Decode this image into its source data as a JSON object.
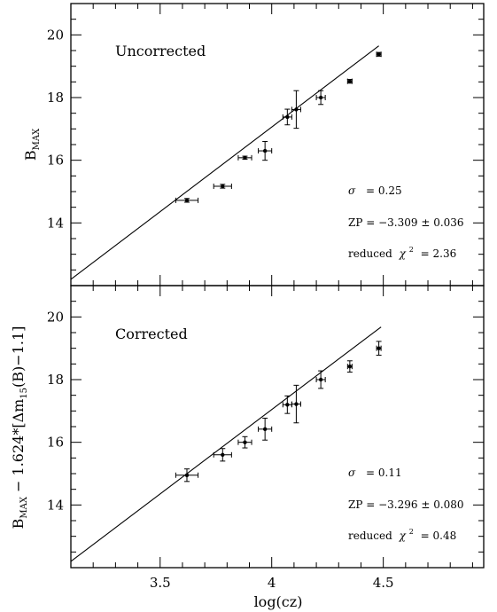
{
  "figure": {
    "xlabel": "log(cz)"
  },
  "chart_data": [
    {
      "type": "scatter",
      "title": "Uncorrected",
      "xlabel": "log(cz)",
      "ylabel_main": "B",
      "ylabel_sub": "MAX",
      "ylabel_rest": "",
      "xlim": [
        3.1,
        4.95
      ],
      "ylim": [
        12.0,
        21.0
      ],
      "xticks": [
        3.5,
        4,
        4.5
      ],
      "xtick_labels": [
        "3.5",
        "4",
        "4.5"
      ],
      "yticks": [
        14,
        16,
        18,
        20
      ],
      "ytick_labels": [
        "14",
        "16",
        "18",
        "20"
      ],
      "fit_line": {
        "x": [
          3.1,
          4.48
        ],
        "y": [
          12.2,
          19.65
        ]
      },
      "points": [
        {
          "x": 3.62,
          "y": 14.72,
          "xerr": 0.05,
          "yerr": 0.06
        },
        {
          "x": 3.78,
          "y": 15.17,
          "xerr": 0.04,
          "yerr": 0.06
        },
        {
          "x": 3.88,
          "y": 16.08,
          "xerr": 0.03,
          "yerr": 0.05
        },
        {
          "x": 3.97,
          "y": 16.3,
          "xerr": 0.03,
          "yerr": 0.3
        },
        {
          "x": 4.07,
          "y": 17.38,
          "xerr": 0.02,
          "yerr": 0.25
        },
        {
          "x": 4.11,
          "y": 17.62,
          "xerr": 0.02,
          "yerr": 0.6
        },
        {
          "x": 4.22,
          "y": 18.0,
          "xerr": 0.02,
          "yerr": 0.22
        },
        {
          "x": 4.35,
          "y": 18.52,
          "xerr": 0.01,
          "yerr": 0.06
        },
        {
          "x": 4.48,
          "y": 19.38,
          "xerr": 0.01,
          "yerr": 0.06
        }
      ],
      "annotations": {
        "sigma_label": "σ",
        "sigma_value": "= 0.25",
        "zp_text": "ZP = −3.309 ± 0.036",
        "chi_prefix": "reduced",
        "chi_symbol": "χ",
        "chi_exp": "2",
        "chi_value": "= 2.36"
      }
    },
    {
      "type": "scatter",
      "title": "Corrected",
      "xlabel": "log(cz)",
      "ylabel_main": "B",
      "ylabel_sub": "MAX",
      "ylabel_rest": " − 1.624*[Δm",
      "ylabel_sub2": "15",
      "ylabel_tail": "(B)−1.1]",
      "xlim": [
        3.1,
        4.95
      ],
      "ylim": [
        12.0,
        21.0
      ],
      "xticks": [
        3.5,
        4,
        4.5
      ],
      "xtick_labels": [
        "3.5",
        "4",
        "4.5"
      ],
      "yticks": [
        14,
        16,
        18,
        20
      ],
      "ytick_labels": [
        "14",
        "16",
        "18",
        "20"
      ],
      "fit_line": {
        "x": [
          3.1,
          4.49
        ],
        "y": [
          12.2,
          19.68
        ]
      },
      "points": [
        {
          "x": 3.62,
          "y": 14.95,
          "xerr": 0.05,
          "yerr": 0.2
        },
        {
          "x": 3.78,
          "y": 15.6,
          "xerr": 0.04,
          "yerr": 0.2
        },
        {
          "x": 3.88,
          "y": 16.0,
          "xerr": 0.03,
          "yerr": 0.18
        },
        {
          "x": 3.97,
          "y": 16.42,
          "xerr": 0.03,
          "yerr": 0.35
        },
        {
          "x": 4.07,
          "y": 17.2,
          "xerr": 0.02,
          "yerr": 0.28
        },
        {
          "x": 4.11,
          "y": 17.22,
          "xerr": 0.02,
          "yerr": 0.6
        },
        {
          "x": 4.22,
          "y": 18.0,
          "xerr": 0.02,
          "yerr": 0.28
        },
        {
          "x": 4.35,
          "y": 18.42,
          "xerr": 0.01,
          "yerr": 0.18
        },
        {
          "x": 4.48,
          "y": 19.0,
          "xerr": 0.01,
          "yerr": 0.22
        }
      ],
      "annotations": {
        "sigma_label": "σ",
        "sigma_value": "= 0.11",
        "zp_text": "ZP = −3.296 ± 0.080",
        "chi_prefix": "reduced",
        "chi_symbol": "χ",
        "chi_exp": "2",
        "chi_value": "= 0.48"
      }
    }
  ]
}
